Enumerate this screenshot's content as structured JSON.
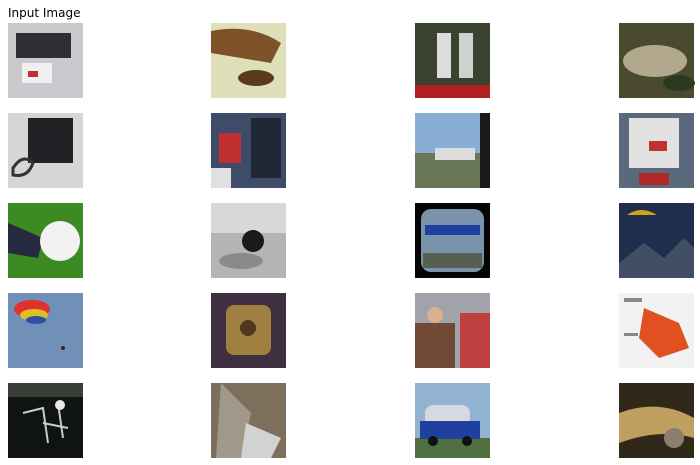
{
  "title": "Input Image"
}
